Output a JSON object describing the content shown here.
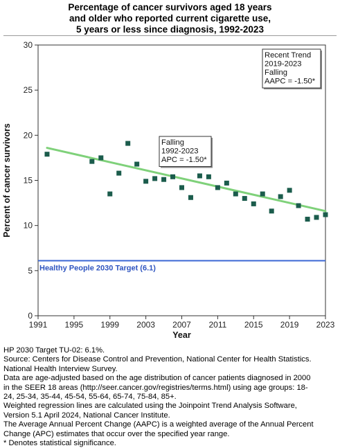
{
  "title": [
    "Percentage of cancer survivors aged 18 years",
    "and older who reported current cigarette use,",
    "5 years or less since diagnosis,  1992-2023"
  ],
  "chart_data": {
    "type": "scatter",
    "xlabel": "Year",
    "ylabel": "Percent of cancer survivors",
    "xlim": [
      1991,
      2023
    ],
    "ylim": [
      0,
      30
    ],
    "x_ticks": [
      1991,
      1995,
      1999,
      2003,
      2007,
      2011,
      2015,
      2019,
      2023
    ],
    "y_ticks": [
      0,
      5,
      10,
      15,
      20,
      25,
      30
    ],
    "grid": false,
    "series": [
      {
        "values": [
          {
            "x": 1992,
            "y": 17.9
          },
          {
            "x": 1997,
            "y": 17.1
          },
          {
            "x": 1998,
            "y": 17.5
          },
          {
            "x": 1999,
            "y": 13.5
          },
          {
            "x": 2000,
            "y": 15.8
          },
          {
            "x": 2001,
            "y": 19.1
          },
          {
            "x": 2002,
            "y": 16.8
          },
          {
            "x": 2003,
            "y": 14.9
          },
          {
            "x": 2004,
            "y": 15.2
          },
          {
            "x": 2005,
            "y": 15.1
          },
          {
            "x": 2006,
            "y": 15.4
          },
          {
            "x": 2007,
            "y": 14.2
          },
          {
            "x": 2008,
            "y": 13.1
          },
          {
            "x": 2009,
            "y": 15.5
          },
          {
            "x": 2010,
            "y": 15.4
          },
          {
            "x": 2011,
            "y": 14.2
          },
          {
            "x": 2012,
            "y": 14.7
          },
          {
            "x": 2013,
            "y": 13.5
          },
          {
            "x": 2014,
            "y": 13.0
          },
          {
            "x": 2015,
            "y": 12.4
          },
          {
            "x": 2016,
            "y": 13.5
          },
          {
            "x": 2017,
            "y": 11.6
          },
          {
            "x": 2018,
            "y": 13.2
          },
          {
            "x": 2019,
            "y": 13.9
          },
          {
            "x": 2020,
            "y": 12.2
          },
          {
            "x": 2021,
            "y": 10.7
          },
          {
            "x": 2022,
            "y": 10.9
          },
          {
            "x": 2023,
            "y": 11.2
          }
        ]
      }
    ],
    "trend_line": {
      "x": [
        1992,
        2023
      ],
      "y": [
        18.6,
        11.6
      ]
    },
    "target_line": {
      "y": 6.1,
      "label": "Healthy People 2030 Target (6.1)"
    },
    "annotations": [
      {
        "anchor": "mid",
        "lines": [
          "Falling",
          "1992-2023",
          "APC = -1.50*"
        ]
      },
      {
        "anchor": "top-right",
        "lines": [
          "Recent Trend",
          "2019-2023",
          "Falling",
          "AAPC = -1.50*"
        ]
      }
    ],
    "colors": {
      "marker": "#1b5c4c",
      "trend": "#7fd17a",
      "target": "#3a66d4",
      "target_label": "#2f55c0",
      "axis": "#333333"
    }
  },
  "footnotes": [
    "HP 2030 Target TU-02: 6.1%.",
    "Source: Centers for Disease Control and Prevention, National Center for Health Statistics.",
    "National Health Interview Survey.",
    "Data are age-adjusted based on the age distribution of cancer patients diagnosed in 2000",
    "in the SEER 18 areas (http://seer.cancer.gov/registries/terms.html) using age groups: 18-",
    "24, 25-34, 35-44, 45-54, 55-64, 65-74, 75-84, 85+.",
    "Weighted regression lines are calculated using the Joinpoint Trend Analysis Software,",
    "Version 5.1 April 2024, National Cancer Institute.",
    "The Average Annual Percent Change (AAPC) is a weighted average of the Annual Percent",
    "Change (APC) estimates that occur over the specified year range.",
    "* Denotes statistical significance."
  ]
}
